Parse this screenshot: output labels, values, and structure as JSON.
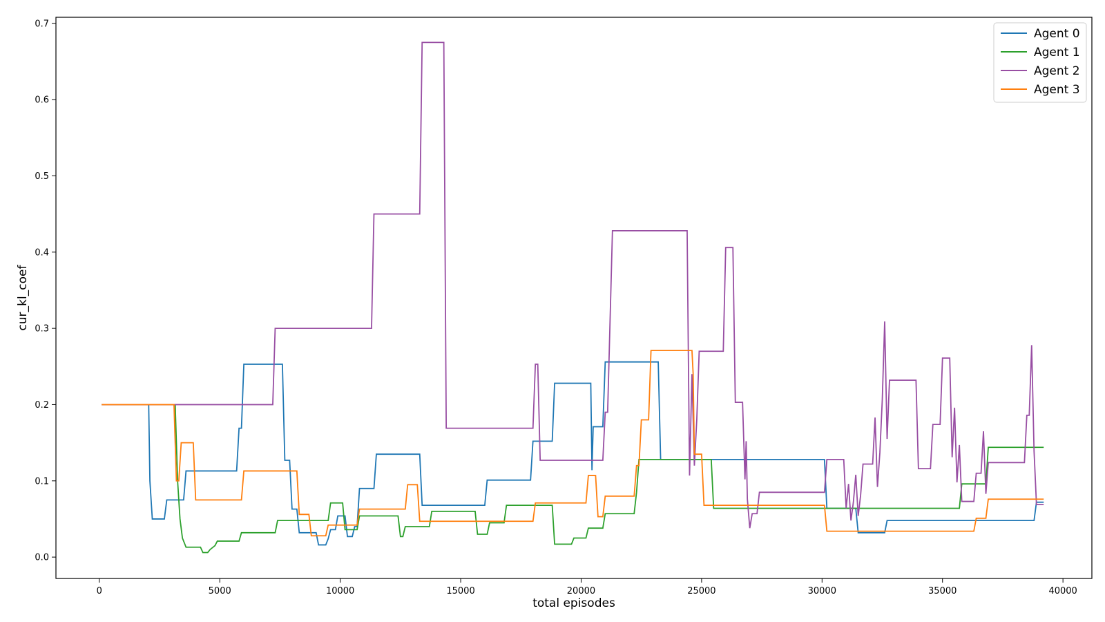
{
  "chart_data": {
    "type": "line",
    "xlabel": "total episodes",
    "ylabel": "cur_kl_coef",
    "xlim": [
      -1800,
      41200
    ],
    "ylim": [
      -0.028,
      0.708
    ],
    "xticks": [
      0,
      5000,
      10000,
      15000,
      20000,
      25000,
      30000,
      35000,
      40000
    ],
    "yticks": [
      0.0,
      0.1,
      0.2,
      0.3,
      0.4,
      0.5,
      0.6,
      0.7
    ],
    "grid": false,
    "legend_position": "top-right",
    "series": [
      {
        "name": "Agent 0",
        "color": "#1f77b4",
        "x": [
          100,
          2050,
          2100,
          2200,
          2300,
          2700,
          2800,
          3500,
          3600,
          5700,
          5800,
          5900,
          6000,
          7600,
          7700,
          7900,
          8000,
          8200,
          8300,
          9000,
          9100,
          9400,
          9500,
          9600,
          9800,
          9900,
          10200,
          10300,
          10500,
          10600,
          10700,
          10800,
          11400,
          11500,
          13300,
          13400,
          16000,
          16100,
          17900,
          18000,
          18800,
          18900,
          20400,
          20450,
          20500,
          20900,
          21000,
          23200,
          23300,
          30100,
          30200,
          31400,
          31500,
          32600,
          32700,
          38800,
          38900,
          39200
        ],
        "y": [
          0.2,
          0.2,
          0.1,
          0.05,
          0.05,
          0.05,
          0.075,
          0.075,
          0.113,
          0.113,
          0.169,
          0.169,
          0.253,
          0.253,
          0.127,
          0.127,
          0.063,
          0.063,
          0.032,
          0.032,
          0.016,
          0.016,
          0.024,
          0.036,
          0.036,
          0.054,
          0.054,
          0.027,
          0.027,
          0.04,
          0.04,
          0.09,
          0.09,
          0.135,
          0.135,
          0.068,
          0.068,
          0.101,
          0.101,
          0.152,
          0.152,
          0.228,
          0.228,
          0.114,
          0.171,
          0.171,
          0.256,
          0.256,
          0.128,
          0.128,
          0.064,
          0.064,
          0.032,
          0.032,
          0.048,
          0.048,
          0.072,
          0.072
        ]
      },
      {
        "name": "Agent 1",
        "color": "#2ca02c",
        "x": [
          100,
          3150,
          3250,
          3350,
          3450,
          3600,
          4200,
          4300,
          4500,
          4600,
          4800,
          4900,
          5800,
          5900,
          7300,
          7400,
          9500,
          9600,
          10100,
          10200,
          10700,
          10800,
          12400,
          12500,
          12600,
          12700,
          13700,
          13800,
          15600,
          15700,
          16100,
          16200,
          16800,
          16900,
          18800,
          18900,
          19600,
          19700,
          20200,
          20300,
          20900,
          21000,
          22200,
          22300,
          22400,
          22500,
          25400,
          25500,
          35700,
          35800,
          36800,
          36900,
          39200
        ],
        "y": [
          0.2,
          0.2,
          0.1,
          0.05,
          0.025,
          0.013,
          0.013,
          0.006,
          0.006,
          0.01,
          0.015,
          0.021,
          0.021,
          0.032,
          0.032,
          0.048,
          0.048,
          0.071,
          0.071,
          0.036,
          0.036,
          0.054,
          0.054,
          0.027,
          0.027,
          0.04,
          0.04,
          0.06,
          0.06,
          0.03,
          0.03,
          0.045,
          0.045,
          0.068,
          0.068,
          0.017,
          0.017,
          0.025,
          0.025,
          0.038,
          0.038,
          0.057,
          0.057,
          0.085,
          0.128,
          0.128,
          0.128,
          0.064,
          0.064,
          0.096,
          0.096,
          0.144,
          0.144
        ]
      },
      {
        "name": "Agent 2",
        "color": "#984ea3",
        "x": [
          100,
          7200,
          7300,
          11300,
          11400,
          13300,
          13400,
          14300,
          14400,
          18000,
          18100,
          18200,
          18300,
          20900,
          21000,
          21100,
          21300,
          21400,
          24400,
          24500,
          24600,
          24700,
          24800,
          24900,
          25900,
          26000,
          26300,
          26400,
          26700,
          26800,
          26850,
          26900,
          27000,
          27100,
          27300,
          27400,
          30100,
          30200,
          30900,
          31000,
          31100,
          31200,
          31300,
          31400,
          31500,
          31600,
          31700,
          32100,
          32200,
          32300,
          32400,
          32500,
          32600,
          32700,
          32800,
          32900,
          33900,
          34000,
          34500,
          34600,
          34900,
          35000,
          35300,
          35400,
          35500,
          35600,
          35700,
          35800,
          35900,
          36300,
          36400,
          36600,
          36700,
          36800,
          36900,
          37100,
          37200,
          38400,
          38500,
          38600,
          38700,
          38800,
          38900,
          39200
        ],
        "y": [
          0.2,
          0.2,
          0.3,
          0.3,
          0.45,
          0.45,
          0.675,
          0.675,
          0.169,
          0.169,
          0.253,
          0.253,
          0.127,
          0.127,
          0.19,
          0.19,
          0.428,
          0.428,
          0.428,
          0.107,
          0.24,
          0.12,
          0.18,
          0.27,
          0.27,
          0.406,
          0.406,
          0.203,
          0.203,
          0.102,
          0.152,
          0.076,
          0.038,
          0.057,
          0.057,
          0.085,
          0.085,
          0.128,
          0.128,
          0.064,
          0.096,
          0.048,
          0.072,
          0.108,
          0.054,
          0.081,
          0.122,
          0.122,
          0.183,
          0.092,
          0.137,
          0.206,
          0.309,
          0.155,
          0.232,
          0.232,
          0.232,
          0.116,
          0.116,
          0.174,
          0.174,
          0.261,
          0.261,
          0.131,
          0.196,
          0.098,
          0.147,
          0.073,
          0.073,
          0.073,
          0.11,
          0.11,
          0.165,
          0.083,
          0.124,
          0.124,
          0.124,
          0.124,
          0.186,
          0.186,
          0.278,
          0.139,
          0.069,
          0.069
        ]
      },
      {
        "name": "Agent 3",
        "color": "#ff7f0e",
        "x": [
          100,
          3100,
          3200,
          3300,
          3400,
          3900,
          4000,
          5900,
          6000,
          8200,
          8300,
          8700,
          8800,
          9400,
          9500,
          10700,
          10800,
          12700,
          12800,
          13200,
          13300,
          18000,
          18100,
          20200,
          20300,
          20600,
          20700,
          20900,
          21000,
          22200,
          22300,
          22400,
          22500,
          22800,
          22900,
          24600,
          24650,
          24700,
          25000,
          25100,
          30100,
          30200,
          36300,
          36400,
          36800,
          36900,
          39200
        ],
        "y": [
          0.2,
          0.2,
          0.1,
          0.1,
          0.15,
          0.15,
          0.075,
          0.075,
          0.113,
          0.113,
          0.056,
          0.056,
          0.028,
          0.028,
          0.042,
          0.042,
          0.063,
          0.063,
          0.095,
          0.095,
          0.047,
          0.047,
          0.071,
          0.071,
          0.107,
          0.107,
          0.053,
          0.053,
          0.08,
          0.08,
          0.12,
          0.12,
          0.18,
          0.18,
          0.271,
          0.271,
          0.24,
          0.135,
          0.135,
          0.068,
          0.068,
          0.034,
          0.034,
          0.051,
          0.051,
          0.076,
          0.076
        ]
      }
    ]
  }
}
